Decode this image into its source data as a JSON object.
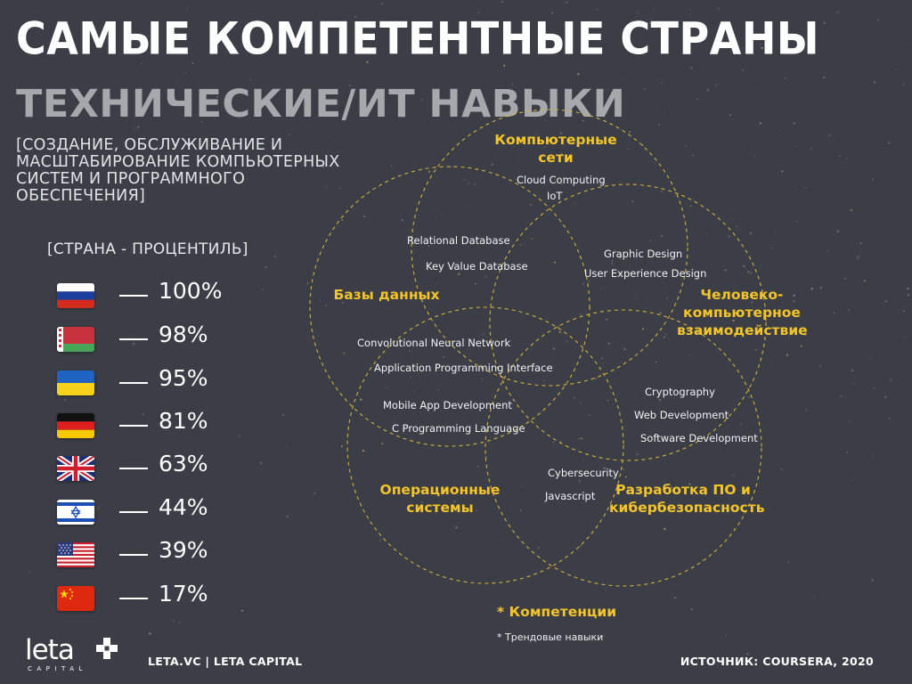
{
  "header": {
    "title": "САМЫЕ КОМПЕТЕНТНЫЕ СТРАНЫ",
    "subtitle": "ТЕХНИЧЕСКИЕ/ИТ НАВЫКИ",
    "description": "[СОЗДАНИЕ, ОБСЛУЖИВАНИЕ И\nМАСШТАБИРОВАНИЕ КОМПЬЮТЕРНЫХ\nСИСТЕМ И ПРОГРАММНОГО\nОБЕСПЕЧЕНИЯ]"
  },
  "ranking": {
    "header": "[СТРАНА  - ПРОЦЕНТИЛЬ]",
    "rows": [
      {
        "flag": "russia-flag-icon",
        "value": "100%"
      },
      {
        "flag": "belarus-flag-icon",
        "value": "98%"
      },
      {
        "flag": "ukraine-flag-icon",
        "value": "95%"
      },
      {
        "flag": "germany-flag-icon",
        "value": "81%"
      },
      {
        "flag": "uk-flag-icon",
        "value": "63%"
      },
      {
        "flag": "israel-flag-icon",
        "value": "44%"
      },
      {
        "flag": "usa-flag-icon",
        "value": "39%"
      },
      {
        "flag": "china-flag-icon",
        "value": "17%"
      }
    ]
  },
  "venn": {
    "circles": [
      {
        "label": "Компьютерные сети"
      },
      {
        "label": "Базы данных"
      },
      {
        "label": "Человеко-\nкомпьютерное\nвзаимодействие"
      },
      {
        "label": "Операционные\nсистемы"
      },
      {
        "label": "Разработка ПО и\nкибербезопасность"
      }
    ],
    "skills": [
      "Cloud Computing",
      "IoT",
      "Relational Database",
      "Key Value Database",
      "Graphic Design",
      "User Experience Design",
      "Convolutional Neural Network",
      "Application Programming Interface",
      "Cryptography",
      "Web Development",
      "Mobile App Development",
      "C Programming Language",
      "Software Development",
      "Cybersecurity",
      "Javascript"
    ]
  },
  "legend": {
    "title": "* Компетенции",
    "subtitle": "* Трендовые навыки"
  },
  "footer": {
    "logo_text": "leta",
    "logo_sub": "CAPITAL",
    "left": "LETA.VC | LETA CAPITAL",
    "right": "ИСТОЧНИК: COURSERA, 2020"
  },
  "colors": {
    "background": "#3b3e47",
    "accent": "#f3c42b",
    "subtitle_gray": "#a7a8ab"
  }
}
